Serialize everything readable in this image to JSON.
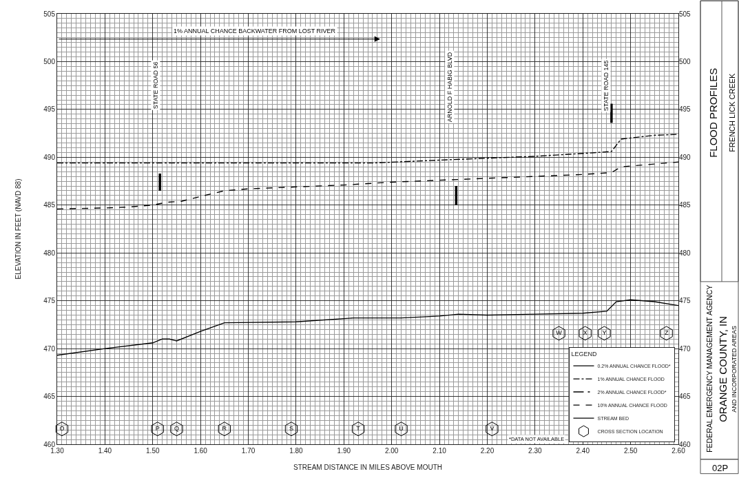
{
  "chart_data": {
    "type": "line",
    "xlabel": "STREAM DISTANCE IN MILES ABOVE MOUTH",
    "ylabel": "ELEVATION IN FEET (NAVD 88)",
    "legend_title": "LEGEND",
    "legend": "bottom right",
    "grid": true,
    "xlim": [
      1.3,
      2.6
    ],
    "xticks": [
      {
        "value": 1.3,
        "label": "1.30"
      },
      {
        "value": 1.4,
        "label": "1.40"
      },
      {
        "value": 1.5,
        "label": "1.50"
      },
      {
        "value": 1.6,
        "label": "1.60"
      },
      {
        "value": 1.7,
        "label": "1.70"
      },
      {
        "value": 1.8,
        "label": "1.80"
      },
      {
        "value": 1.9,
        "label": "1.90"
      },
      {
        "value": 2.0,
        "label": "2.00"
      },
      {
        "value": 2.1,
        "label": "2.10"
      },
      {
        "value": 2.2,
        "label": "2.20"
      },
      {
        "value": 2.3,
        "label": "2.30"
      },
      {
        "value": 2.4,
        "label": "2.40"
      },
      {
        "value": 2.5,
        "label": "2.50"
      },
      {
        "value": 2.6,
        "label": "2.60"
      }
    ],
    "ylim": [
      460,
      505
    ],
    "yticks": [
      460,
      465,
      470,
      475,
      480,
      485,
      490,
      495,
      500,
      505
    ],
    "y2lim": [
      460,
      505
    ],
    "y2ticks": [
      460,
      465,
      470,
      475,
      480,
      485,
      490,
      495,
      500,
      505
    ],
    "series": [
      {
        "name": "0.2% ANNUAL CHANCE FLOOD*",
        "color": "#000000",
        "line_style": "solid",
        "values": [
          null
        ]
      },
      {
        "name": "1% ANNUAL CHANCE FLOOD",
        "color": "#000000",
        "line_style": "dashdot",
        "x": [
          1.3,
          1.5,
          1.7,
          1.9,
          1.96,
          2.1,
          2.2,
          2.3,
          2.4,
          2.46,
          2.48,
          2.55,
          2.6
        ],
        "values": [
          489.4,
          489.4,
          489.4,
          489.4,
          489.4,
          489.7,
          489.9,
          490.1,
          490.4,
          490.6,
          491.9,
          492.3,
          492.4
        ]
      },
      {
        "name": "2% ANNUAL CHANCE FLOOD*",
        "color": "#000000",
        "line_style": "longdashdot",
        "values": [
          null
        ]
      },
      {
        "name": "10% ANNUAL CHANCE FLOOD",
        "color": "#000000",
        "line_style": "dashed",
        "x": [
          1.3,
          1.4,
          1.45,
          1.5,
          1.53,
          1.56,
          1.6,
          1.65,
          1.7,
          1.8,
          1.9,
          2.0,
          2.1,
          2.2,
          2.3,
          2.4,
          2.46,
          2.48,
          2.6
        ],
        "values": [
          484.6,
          484.7,
          484.8,
          485.0,
          485.3,
          485.4,
          485.9,
          486.5,
          486.7,
          486.9,
          487.1,
          487.4,
          487.6,
          487.8,
          488.0,
          488.2,
          488.4,
          489.0,
          489.5
        ]
      },
      {
        "name": "STREAM BED",
        "color": "#000000",
        "line_style": "solid",
        "x": [
          1.3,
          1.4,
          1.5,
          1.52,
          1.535,
          1.55,
          1.6,
          1.65,
          1.8,
          1.92,
          2.02,
          2.1,
          2.14,
          2.2,
          2.3,
          2.4,
          2.45,
          2.47,
          2.5,
          2.55,
          2.6
        ],
        "values": [
          469.3,
          470.0,
          470.6,
          471.0,
          471.0,
          470.8,
          471.8,
          472.7,
          472.8,
          473.2,
          473.2,
          473.4,
          473.6,
          473.5,
          473.6,
          473.7,
          473.9,
          474.9,
          475.1,
          474.9,
          474.5
        ]
      },
      {
        "name": "CROSS SECTION LOCATION",
        "type": "scatter",
        "color": "#000000",
        "x": [
          1.31,
          1.51,
          1.55,
          1.65,
          1.79,
          1.93,
          2.02,
          2.21,
          2.35,
          2.405,
          2.445,
          2.575
        ],
        "values": [
          461.6,
          461.6,
          461.6,
          461.6,
          461.6,
          461.6,
          461.6,
          461.6,
          471.6,
          471.6,
          471.6,
          471.6
        ],
        "value_labels": [
          "O",
          "P",
          "Q",
          "R",
          "S",
          "T",
          "U",
          "V",
          "W",
          "X",
          "Y",
          "Z"
        ]
      },
      {
        "type": "bar",
        "color": "#000000",
        "x": [
          1.515,
          2.135,
          2.46
        ],
        "base": [
          486.5,
          485.0,
          493.6
        ],
        "values": [
          1.8,
          2.0,
          2.0
        ]
      }
    ],
    "annotations": [
      "1% ANNUAL CHANCE BACKWATER FROM LOST RIVER",
      "STATE ROAD 56",
      "ARNOLD F HABIG BLVD",
      "STATE ROAD 145",
      "*DATA NOT AVAILABLE",
      "FLOOD PROFILES",
      "FRENCH LICK CREEK",
      "FEDERAL EMERGENCY MANAGEMENT AGENCY",
      "ORANGE COUNTY, IN",
      "AND INCORPORATED AREAS",
      "02P"
    ]
  }
}
